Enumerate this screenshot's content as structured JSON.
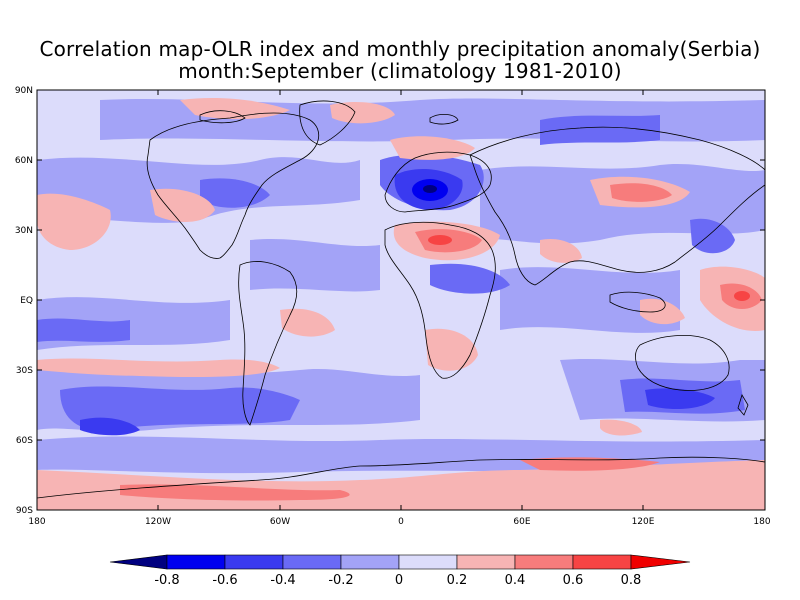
{
  "title": {
    "line1": "Correlation map-OLR index and monthly precipitation anomaly(Serbia)",
    "line2": "month:September (climatology 1981-2010)"
  },
  "axes": {
    "lat_labels": [
      "90N",
      "60N",
      "30N",
      "EQ",
      "30S",
      "60S",
      "90S"
    ],
    "lon_labels": [
      "180",
      "120W",
      "60W",
      "0",
      "60E",
      "120E",
      "180"
    ]
  },
  "colorbar": {
    "labels": [
      "-0.8",
      "-0.6",
      "-0.4",
      "-0.2",
      "0",
      "0.2",
      "0.4",
      "0.6",
      "0.8"
    ],
    "colors": [
      "#000080",
      "#0000f0",
      "#3a3af0",
      "#6a6af5",
      "#a3a3f7",
      "#dcdcfb",
      "#f7b4b4",
      "#f77c7c",
      "#f74444",
      "#f00000"
    ]
  },
  "map_colors": {
    "land_outline": "#000000",
    "background_neutral": "#dcdcfb"
  }
}
